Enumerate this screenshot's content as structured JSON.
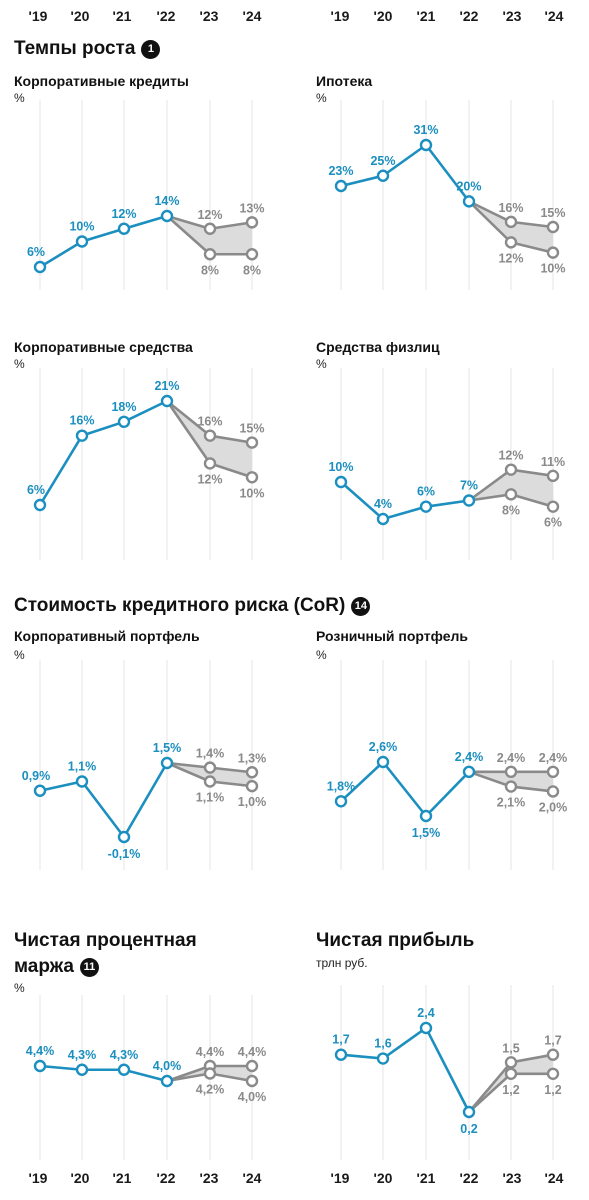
{
  "years": [
    "'19",
    "'20",
    "'21",
    "'22",
    "'23",
    "'24"
  ],
  "sections": {
    "growth": {
      "title": "Темпы роста",
      "badge": "1"
    },
    "cor": {
      "title": "Стоимость кредитного риска (CoR)",
      "badge": "14"
    },
    "nim": {
      "title_line1": "Чистая процентная",
      "title_line2": "маржа",
      "badge": "11"
    }
  },
  "colors": {
    "actual": "#1b8fbf",
    "forecast": "#8a8a8a",
    "band": "#dcdcdc",
    "grid": "#e4e4e4"
  },
  "chart_data": [
    {
      "type": "line",
      "title": "Корпоративные кредиты",
      "unit": "%",
      "x": [
        "'19",
        "'20",
        "'21",
        "'22",
        "'23",
        "'24"
      ],
      "series": [
        {
          "role": "actual",
          "values": [
            6,
            10,
            12,
            14,
            null,
            null
          ],
          "labels": [
            "6%",
            "10%",
            "12%",
            "14%",
            "",
            ""
          ]
        },
        {
          "role": "forecast_high",
          "values": [
            null,
            null,
            null,
            14,
            12,
            13
          ],
          "labels": [
            "",
            "",
            "",
            "",
            "12%",
            "13%"
          ]
        },
        {
          "role": "forecast_low",
          "values": [
            null,
            null,
            null,
            14,
            8,
            8
          ],
          "labels": [
            "",
            "",
            "",
            "",
            "8%",
            "8%"
          ]
        }
      ]
    },
    {
      "type": "line",
      "title": "Ипотека",
      "unit": "%",
      "x": [
        "'19",
        "'20",
        "'21",
        "'22",
        "'23",
        "'24"
      ],
      "series": [
        {
          "role": "actual",
          "values": [
            23,
            25,
            31,
            20,
            null,
            null
          ],
          "labels": [
            "23%",
            "25%",
            "31%",
            "20%",
            "",
            ""
          ]
        },
        {
          "role": "forecast_high",
          "values": [
            null,
            null,
            null,
            20,
            16,
            15
          ],
          "labels": [
            "",
            "",
            "",
            "",
            "16%",
            "15%"
          ]
        },
        {
          "role": "forecast_low",
          "values": [
            null,
            null,
            null,
            20,
            12,
            10
          ],
          "labels": [
            "",
            "",
            "",
            "",
            "12%",
            "10%"
          ]
        }
      ]
    },
    {
      "type": "line",
      "title": "Корпоративные средства",
      "unit": "%",
      "x": [
        "'19",
        "'20",
        "'21",
        "'22",
        "'23",
        "'24"
      ],
      "series": [
        {
          "role": "actual",
          "values": [
            6,
            16,
            18,
            21,
            null,
            null
          ],
          "labels": [
            "6%",
            "16%",
            "18%",
            "21%",
            "",
            ""
          ]
        },
        {
          "role": "forecast_high",
          "values": [
            null,
            null,
            null,
            21,
            16,
            15
          ],
          "labels": [
            "",
            "",
            "",
            "",
            "16%",
            "15%"
          ]
        },
        {
          "role": "forecast_low",
          "values": [
            null,
            null,
            null,
            21,
            12,
            10
          ],
          "labels": [
            "",
            "",
            "",
            "",
            "12%",
            "10%"
          ]
        }
      ]
    },
    {
      "type": "line",
      "title": "Средства физлиц",
      "unit": "%",
      "x": [
        "'19",
        "'20",
        "'21",
        "'22",
        "'23",
        "'24"
      ],
      "series": [
        {
          "role": "actual",
          "values": [
            10,
            4,
            6,
            7,
            null,
            null
          ],
          "labels": [
            "10%",
            "4%",
            "6%",
            "7%",
            "",
            ""
          ]
        },
        {
          "role": "forecast_high",
          "values": [
            null,
            null,
            null,
            7,
            12,
            11
          ],
          "labels": [
            "",
            "",
            "",
            "",
            "12%",
            "11%"
          ]
        },
        {
          "role": "forecast_low",
          "values": [
            null,
            null,
            null,
            7,
            8,
            6
          ],
          "labels": [
            "",
            "",
            "",
            "",
            "8%",
            "6%"
          ]
        }
      ]
    },
    {
      "type": "line",
      "title": "Корпоративный портфель",
      "unit": "%",
      "x": [
        "'19",
        "'20",
        "'21",
        "'22",
        "'23",
        "'24"
      ],
      "series": [
        {
          "role": "actual",
          "values": [
            0.9,
            1.1,
            -0.1,
            1.5,
            null,
            null
          ],
          "labels": [
            "0,9%",
            "1,1%",
            "-0,1%",
            "1,5%",
            "",
            ""
          ]
        },
        {
          "role": "forecast_high",
          "values": [
            null,
            null,
            null,
            1.5,
            1.4,
            1.3
          ],
          "labels": [
            "",
            "",
            "",
            "",
            "1,4%",
            "1,3%"
          ]
        },
        {
          "role": "forecast_low",
          "values": [
            null,
            null,
            null,
            1.5,
            1.1,
            1.0
          ],
          "labels": [
            "",
            "",
            "",
            "",
            "1,1%",
            "1,0%"
          ]
        }
      ]
    },
    {
      "type": "line",
      "title": "Розничный портфель",
      "unit": "%",
      "x": [
        "'19",
        "'20",
        "'21",
        "'22",
        "'23",
        "'24"
      ],
      "series": [
        {
          "role": "actual",
          "values": [
            1.8,
            2.6,
            1.5,
            2.4,
            null,
            null
          ],
          "labels": [
            "1,8%",
            "2,6%",
            "1,5%",
            "2,4%",
            "",
            ""
          ]
        },
        {
          "role": "forecast_high",
          "values": [
            null,
            null,
            null,
            2.4,
            2.4,
            2.4
          ],
          "labels": [
            "",
            "",
            "",
            "",
            "2,4%",
            "2,4%"
          ]
        },
        {
          "role": "forecast_low",
          "values": [
            null,
            null,
            null,
            2.4,
            2.1,
            2.0
          ],
          "labels": [
            "",
            "",
            "",
            "",
            "2,1%",
            "2,0%"
          ]
        }
      ]
    },
    {
      "type": "line",
      "title": "",
      "unit": "%",
      "x": [
        "'19",
        "'20",
        "'21",
        "'22",
        "'23",
        "'24"
      ],
      "series": [
        {
          "role": "actual",
          "values": [
            4.4,
            4.3,
            4.3,
            4.0,
            null,
            null
          ],
          "labels": [
            "4,4%",
            "4,3%",
            "4,3%",
            "4,0%",
            "",
            ""
          ]
        },
        {
          "role": "forecast_high",
          "values": [
            null,
            null,
            null,
            4.0,
            4.4,
            4.4
          ],
          "labels": [
            "",
            "",
            "",
            "",
            "4,4%",
            "4,4%"
          ]
        },
        {
          "role": "forecast_low",
          "values": [
            null,
            null,
            null,
            4.0,
            4.2,
            4.0
          ],
          "labels": [
            "",
            "",
            "",
            "",
            "4,2%",
            "4,0%"
          ]
        }
      ]
    },
    {
      "type": "line",
      "title": "Чистая прибыль",
      "unit": "трлн руб.",
      "x": [
        "'19",
        "'20",
        "'21",
        "'22",
        "'23",
        "'24"
      ],
      "series": [
        {
          "role": "actual",
          "values": [
            1.7,
            1.6,
            2.4,
            0.2,
            null,
            null
          ],
          "labels": [
            "1,7",
            "1,6",
            "2,4",
            "0,2",
            "",
            ""
          ]
        },
        {
          "role": "forecast_high",
          "values": [
            null,
            null,
            null,
            0.2,
            1.5,
            1.7
          ],
          "labels": [
            "",
            "",
            "",
            "",
            "1,5",
            "1,7"
          ]
        },
        {
          "role": "forecast_low",
          "values": [
            null,
            null,
            null,
            0.2,
            1.2,
            1.2
          ],
          "labels": [
            "",
            "",
            "",
            "",
            "1,2",
            "1,2"
          ]
        }
      ]
    }
  ]
}
